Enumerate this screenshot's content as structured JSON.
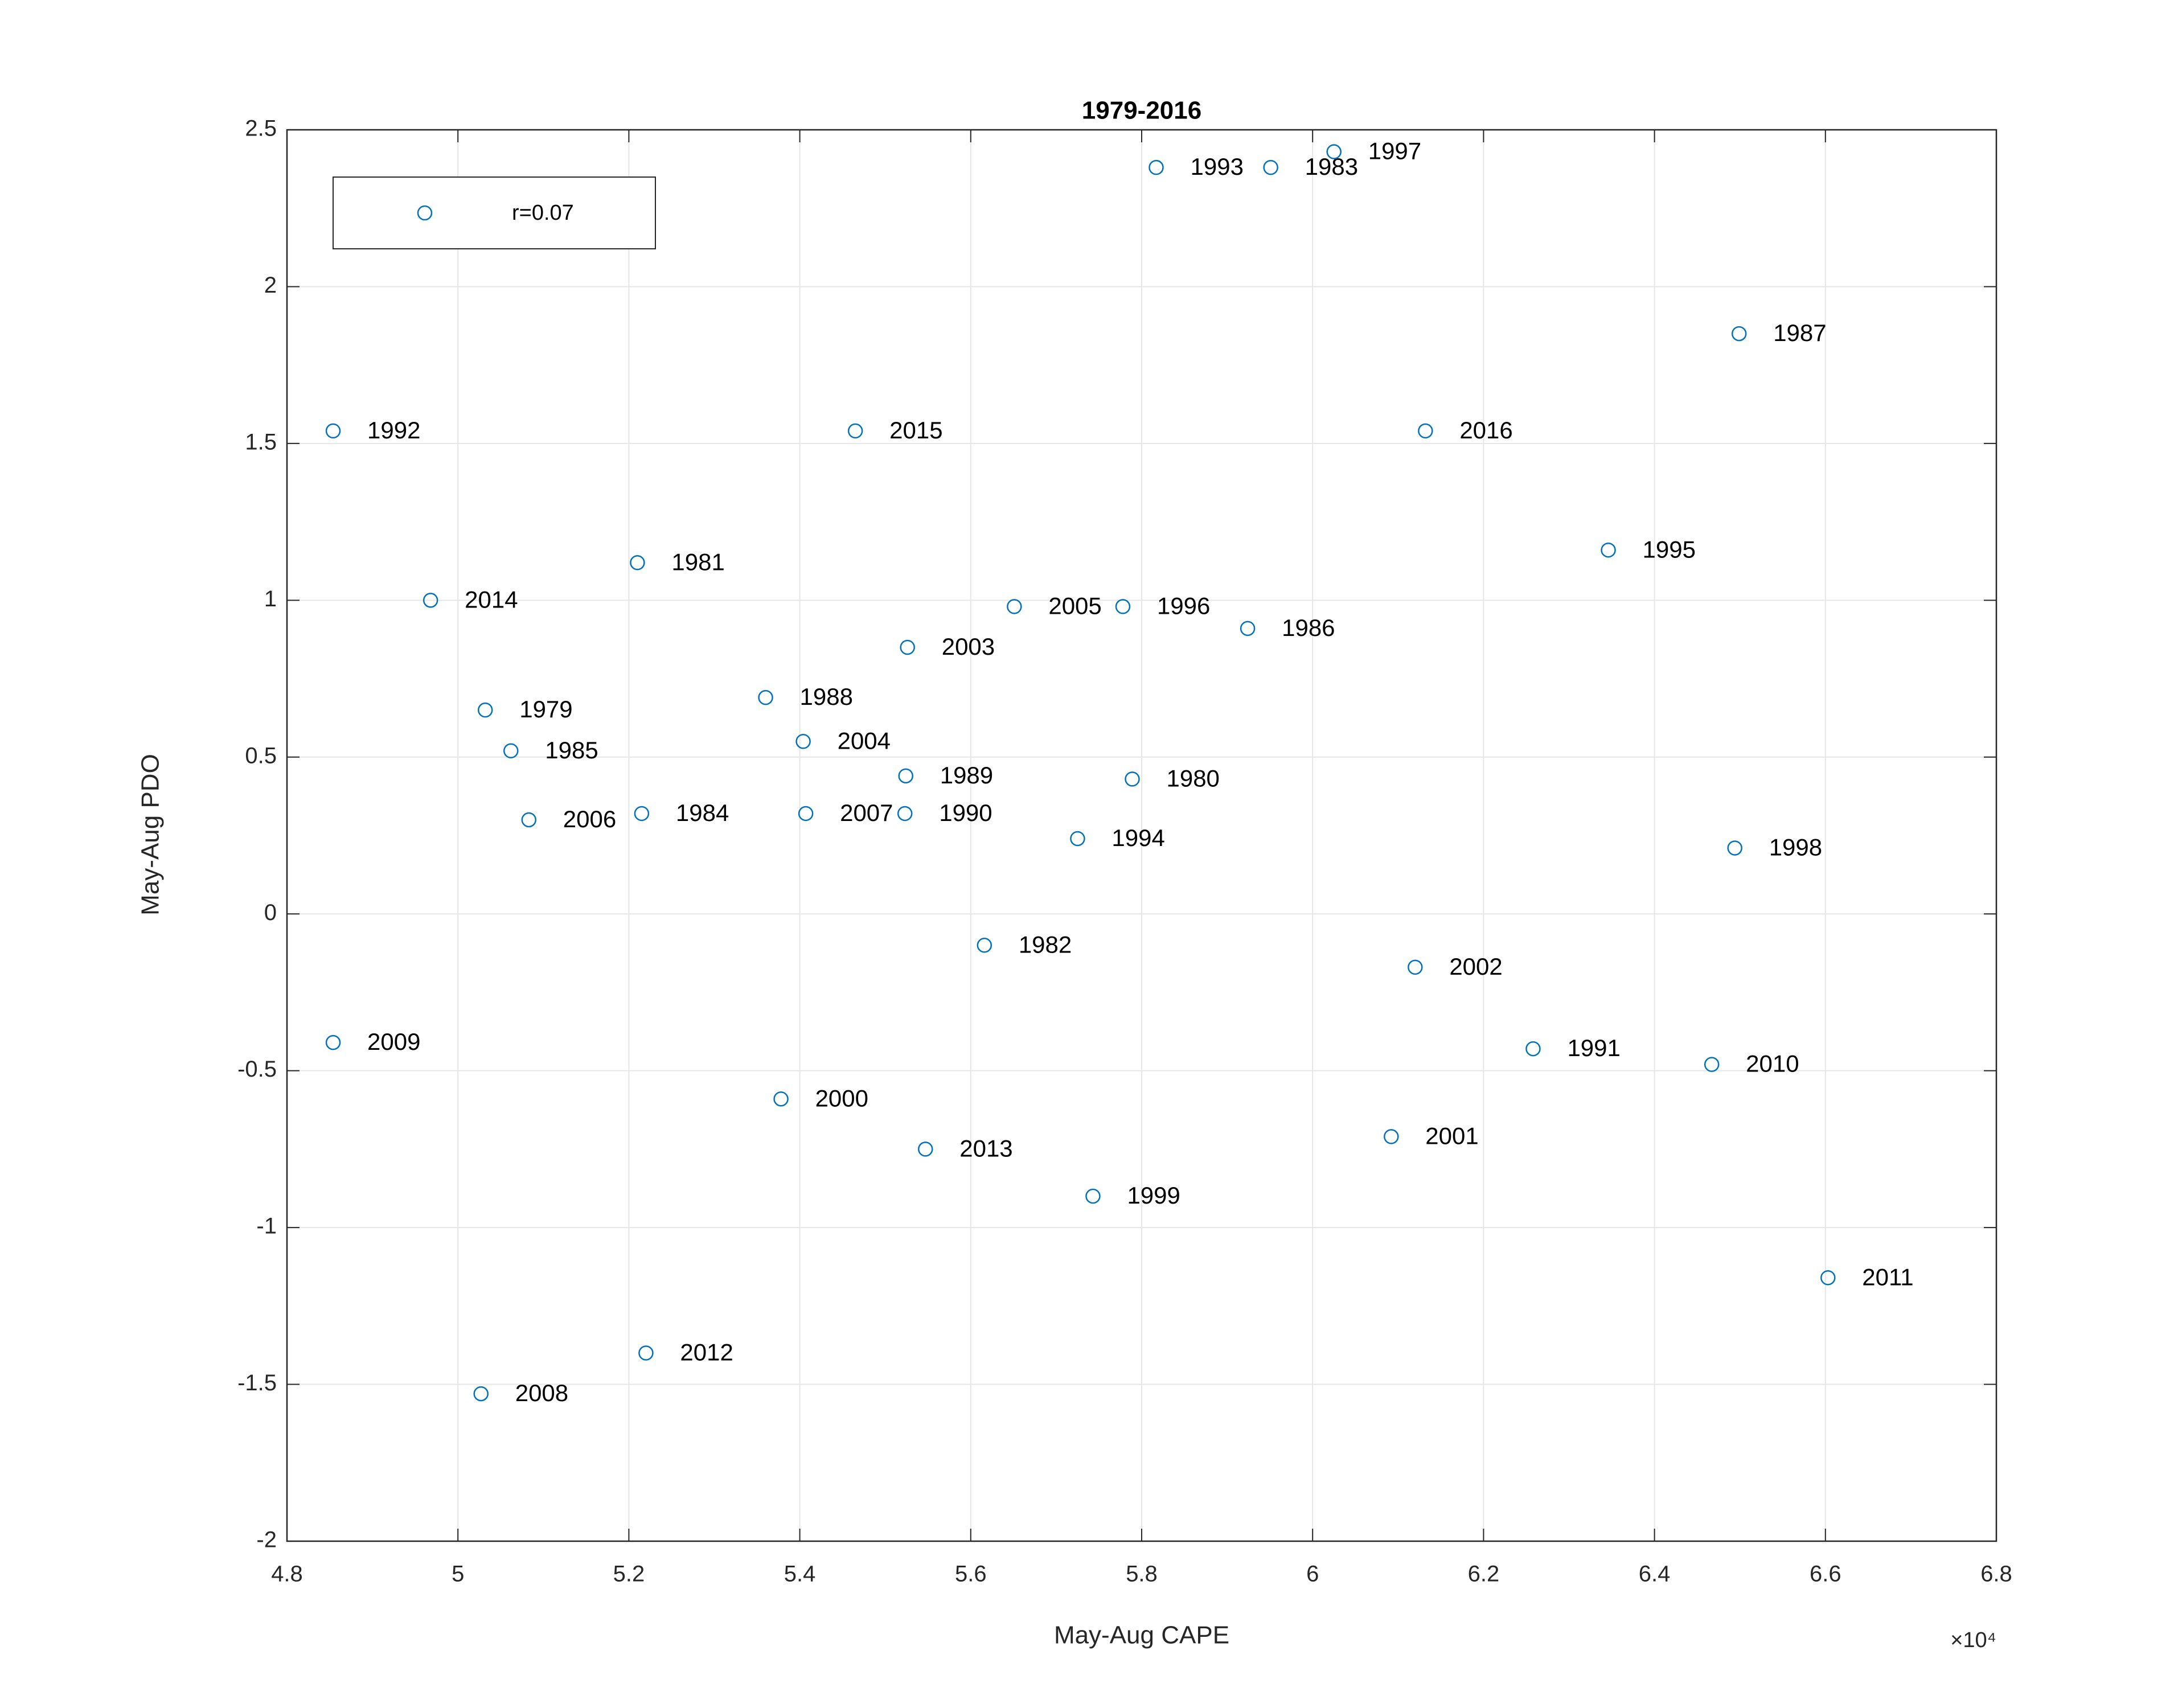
{
  "chart_data": {
    "type": "scatter",
    "title": "1979-2016",
    "x_label": "May-Aug CAPE",
    "y_label": "May-Aug PDO",
    "x_multiplier": "×10⁴",
    "xlim": [
      4.8,
      6.8
    ],
    "xticks": [
      4.8,
      5,
      5.2,
      5.4,
      5.6,
      5.8,
      6,
      6.2,
      6.4,
      6.6,
      6.8
    ],
    "ylim": [
      -2,
      2.5
    ],
    "yticks": [
      -2,
      -1.5,
      -1,
      -0.5,
      0,
      0.5,
      1,
      1.5,
      2,
      2.5
    ],
    "grid": true,
    "legend": "top-left",
    "series": [
      {
        "name": "r=0.07",
        "color": "#0072bd",
        "x": [
          4.854,
          5.465,
          5.21,
          4.968,
          5.032,
          5.062,
          5.083,
          5.215,
          5.36,
          5.404,
          5.526,
          5.407,
          5.524,
          5.523,
          5.651,
          5.778,
          5.924,
          5.789,
          5.725,
          5.616,
          4.854,
          5.378,
          5.547,
          5.743,
          5.027,
          5.22,
          5.817,
          5.951,
          6.025,
          6.132,
          6.499,
          6.346,
          6.12,
          6.258,
          6.092,
          6.467,
          6.494,
          6.603
        ],
        "values": [
          1.54,
          1.54,
          1.12,
          1.0,
          0.65,
          0.52,
          0.3,
          0.32,
          0.69,
          0.55,
          0.85,
          0.32,
          0.44,
          0.32,
          0.98,
          0.98,
          0.91,
          0.43,
          0.24,
          -0.1,
          -0.41,
          -0.59,
          -0.75,
          -0.9,
          -1.53,
          -1.4,
          2.38,
          2.38,
          2.43,
          1.54,
          1.85,
          1.16,
          -0.17,
          -0.43,
          -0.71,
          -0.48,
          0.21,
          -1.16
        ],
        "point_labels": [
          "1992",
          "2015",
          "1981",
          "2014",
          "1979",
          "1985",
          "2006",
          "1984",
          "1988",
          "2004",
          "2003",
          "2007",
          "1989",
          "1990",
          "2005",
          "1996",
          "1986",
          "1980",
          "1994",
          "1982",
          "2009",
          "2000",
          "2013",
          "1999",
          "2008",
          "2012",
          "1993",
          "1983",
          "1997",
          "2016",
          "1987",
          "1995",
          "2002",
          "1991",
          "2001",
          "2010",
          "1998",
          "2011"
        ]
      }
    ]
  }
}
